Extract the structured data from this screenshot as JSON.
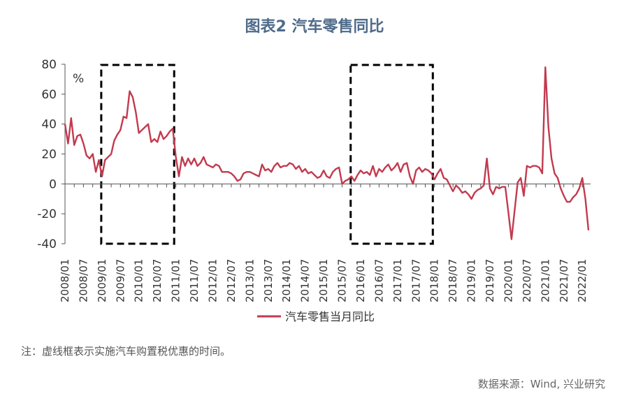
{
  "title": "图表2 汽车零售同比",
  "note": "注：虚线框表示实施汽车购置税优惠的时间。",
  "source": "数据来源：Wind, 兴业研究",
  "colors": {
    "line": "#c23a4e",
    "axis": "#555555",
    "text": "#333333",
    "title": "#4f6b8a"
  },
  "chart_data": {
    "type": "line",
    "title": "图表2 汽车零售同比",
    "ylabel": "%",
    "ylim": [
      -40,
      80
    ],
    "yticks": [
      -40,
      -20,
      0,
      20,
      40,
      60,
      80
    ],
    "grid": false,
    "legend_position": "bottom",
    "x_tick_labels": [
      "2008/01",
      "2008/07",
      "2009/01",
      "2009/07",
      "2010/01",
      "2010/07",
      "2011/01",
      "2011/07",
      "2012/01",
      "2012/07",
      "2013/01",
      "2013/07",
      "2014/01",
      "2014/07",
      "2015/01",
      "2015/07",
      "2016/01",
      "2016/07",
      "2017/01",
      "2017/07",
      "2018/01",
      "2018/07",
      "2019/01",
      "2019/07",
      "2020/01",
      "2020/07",
      "2021/01",
      "2021/07",
      "2022/01"
    ],
    "highlight_periods": [
      {
        "start": "2009/01",
        "end": "2010/12",
        "style": "dashed box"
      },
      {
        "start": "2015/10",
        "end": "2017/12",
        "style": "dashed box"
      }
    ],
    "series": [
      {
        "name": "汽车零售当月同比",
        "color": "#c23a4e",
        "x": [
          "2008/01",
          "2008/02",
          "2008/03",
          "2008/04",
          "2008/05",
          "2008/06",
          "2008/07",
          "2008/08",
          "2008/09",
          "2008/10",
          "2008/11",
          "2008/12",
          "2009/01",
          "2009/02",
          "2009/03",
          "2009/04",
          "2009/05",
          "2009/06",
          "2009/07",
          "2009/08",
          "2009/09",
          "2009/10",
          "2009/11",
          "2009/12",
          "2010/01",
          "2010/02",
          "2010/03",
          "2010/04",
          "2010/05",
          "2010/06",
          "2010/07",
          "2010/08",
          "2010/09",
          "2010/10",
          "2010/11",
          "2010/12",
          "2011/01",
          "2011/02",
          "2011/03",
          "2011/04",
          "2011/05",
          "2011/06",
          "2011/07",
          "2011/08",
          "2011/09",
          "2011/10",
          "2011/11",
          "2011/12",
          "2012/01",
          "2012/02",
          "2012/03",
          "2012/04",
          "2012/05",
          "2012/06",
          "2012/07",
          "2012/08",
          "2012/09",
          "2012/10",
          "2012/11",
          "2012/12",
          "2013/01",
          "2013/02",
          "2013/03",
          "2013/04",
          "2013/05",
          "2013/06",
          "2013/07",
          "2013/08",
          "2013/09",
          "2013/10",
          "2013/11",
          "2013/12",
          "2014/01",
          "2014/02",
          "2014/03",
          "2014/04",
          "2014/05",
          "2014/06",
          "2014/07",
          "2014/08",
          "2014/09",
          "2014/10",
          "2014/11",
          "2014/12",
          "2015/01",
          "2015/02",
          "2015/03",
          "2015/04",
          "2015/05",
          "2015/06",
          "2015/07",
          "2015/08",
          "2015/09",
          "2015/10",
          "2015/11",
          "2015/12",
          "2016/01",
          "2016/02",
          "2016/03",
          "2016/04",
          "2016/05",
          "2016/06",
          "2016/07",
          "2016/08",
          "2016/09",
          "2016/10",
          "2016/11",
          "2016/12",
          "2017/01",
          "2017/02",
          "2017/03",
          "2017/04",
          "2017/05",
          "2017/06",
          "2017/07",
          "2017/08",
          "2017/09",
          "2017/10",
          "2017/11",
          "2017/12",
          "2018/01",
          "2018/02",
          "2018/03",
          "2018/04",
          "2018/05",
          "2018/06",
          "2018/07",
          "2018/08",
          "2018/09",
          "2018/10",
          "2018/11",
          "2018/12",
          "2019/01",
          "2019/02",
          "2019/03",
          "2019/04",
          "2019/05",
          "2019/06",
          "2019/07",
          "2019/08",
          "2019/09",
          "2019/10",
          "2019/11",
          "2019/12",
          "2020/01",
          "2020/02",
          "2020/03",
          "2020/04",
          "2020/05",
          "2020/06",
          "2020/07",
          "2020/08",
          "2020/09",
          "2020/10",
          "2020/11",
          "2020/12",
          "2021/01",
          "2021/02",
          "2021/03",
          "2021/04",
          "2021/05",
          "2021/06",
          "2021/07",
          "2021/08",
          "2021/09",
          "2021/10",
          "2021/11",
          "2021/12",
          "2022/01",
          "2022/02",
          "2022/03"
        ],
        "values": [
          40,
          27,
          44,
          26,
          32,
          33,
          27,
          19,
          17,
          20,
          8,
          16,
          5,
          16,
          18,
          20,
          29,
          33,
          36,
          45,
          44,
          62,
          58,
          48,
          34,
          36,
          38,
          40,
          28,
          30,
          28,
          35,
          30,
          32,
          35,
          37,
          18,
          5,
          18,
          12,
          17,
          13,
          17,
          12,
          14,
          18,
          13,
          12,
          11,
          13,
          12,
          8,
          8,
          8,
          7,
          5,
          2,
          3,
          7,
          8,
          8,
          7,
          6,
          5,
          13,
          9,
          10,
          8,
          12,
          14,
          11,
          12,
          12,
          14,
          13,
          10,
          12,
          8,
          10,
          7,
          8,
          6,
          4,
          5,
          9,
          5,
          4,
          8,
          10,
          11,
          0,
          2,
          3,
          5,
          2,
          6,
          9,
          7,
          8,
          6,
          12,
          5,
          10,
          8,
          11,
          13,
          9,
          11,
          14,
          8,
          13,
          14,
          5,
          0,
          9,
          11,
          8,
          10,
          9,
          7,
          3,
          7,
          10,
          4,
          3,
          -1,
          -5,
          -1,
          -3,
          -6,
          -5,
          -7,
          -10,
          -6,
          -4,
          -3,
          -1,
          17,
          -3,
          -7,
          -2,
          -3,
          -2,
          -2,
          -19,
          -37,
          -18,
          1,
          4,
          -8,
          12,
          11,
          12,
          12,
          11,
          7,
          78,
          38,
          17,
          7,
          4,
          -3,
          -8,
          -12,
          -12,
          -9,
          -7,
          -3,
          4,
          -10,
          -31
        ]
      }
    ]
  }
}
